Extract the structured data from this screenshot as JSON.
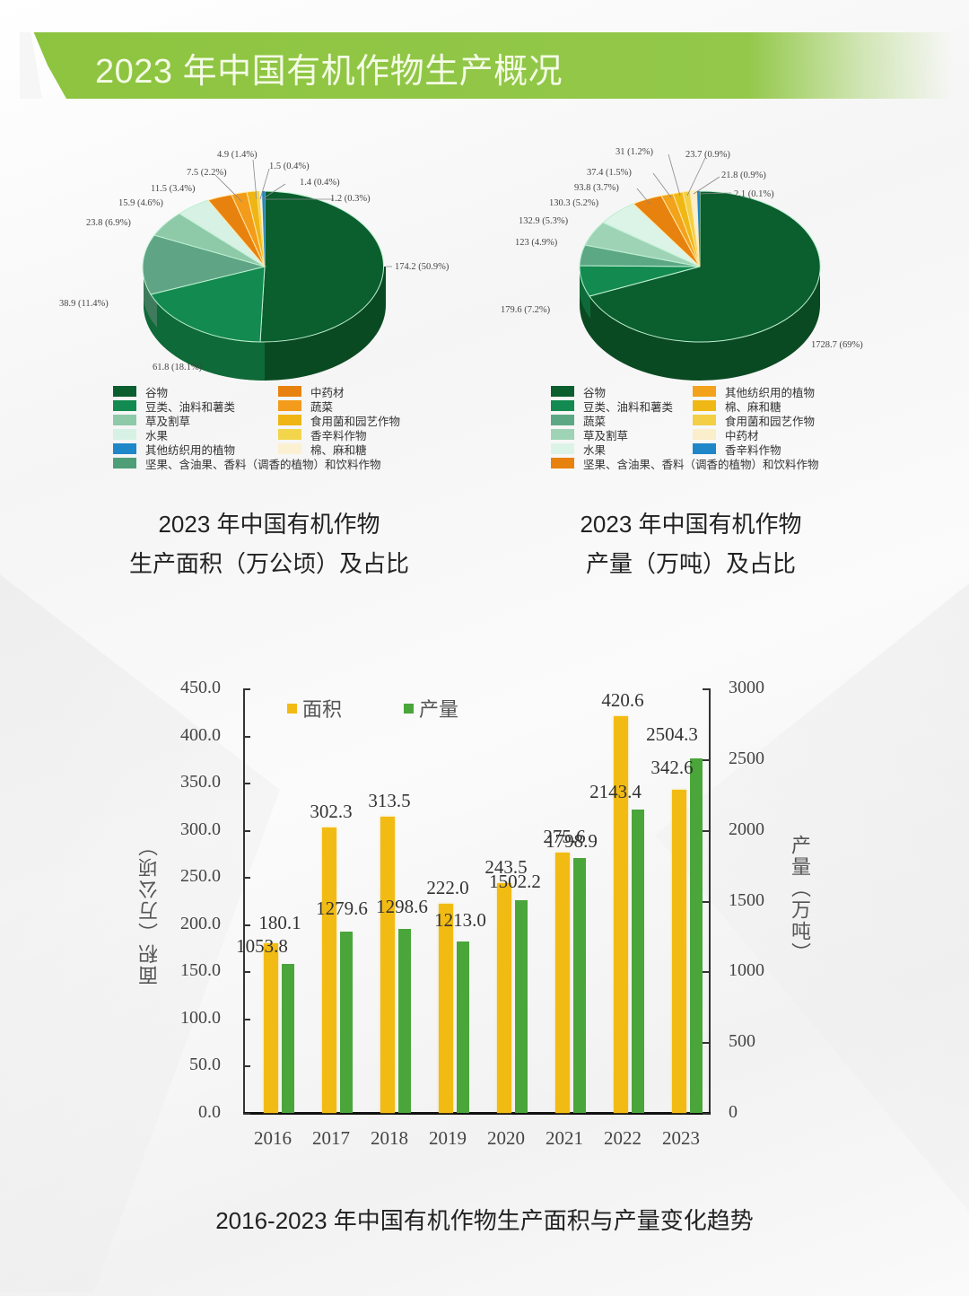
{
  "page": {
    "title": "2023 年中国有机作物生产概况"
  },
  "colors": {
    "banner": "#8dc43f",
    "area_bar": "#f2bb14",
    "production_bar": "#4aa53a"
  },
  "pie_area": {
    "caption_line1": "2023 年中国有机作物",
    "caption_line2": "生产面积（万公顷）及占比",
    "labels": [
      "174.2 (50.9%)",
      "61.8 (18.1%)",
      "38.9 (11.4%)",
      "23.8 (6.9%)",
      "15.9 (4.6%)",
      "11.5 (3.4%)",
      "7.5 (2.2%)",
      "4.9 (1.4%)",
      "1.5 (0.4%)",
      "1.4 (0.4%)",
      "1.2 (0.3%)"
    ],
    "legend": [
      {
        "label": "谷物",
        "color": "#0b5e2e"
      },
      {
        "label": "豆类、油料和薯类",
        "color": "#138a50"
      },
      {
        "label": "草及割草",
        "color": "#8ec9a8"
      },
      {
        "label": "水果",
        "color": "#d7f1e4"
      },
      {
        "label": "其他纺织用的植物",
        "color": "#1f86c8"
      },
      {
        "label": "坚果、含油果、香料（调香的植物）和饮料作物",
        "color": "#4e9e78"
      },
      {
        "label": "中药材",
        "color": "#e8820e"
      },
      {
        "label": "蔬菜",
        "color": "#f39b1a"
      },
      {
        "label": "食用菌和园艺作物",
        "color": "#efb515"
      },
      {
        "label": "香辛料作物",
        "color": "#f2d54a"
      },
      {
        "label": "棉、麻和糖",
        "color": "#fbf0d2"
      }
    ]
  },
  "pie_production": {
    "caption_line1": "2023 年中国有机作物",
    "caption_line2": "产量（万吨）及占比",
    "labels": [
      "1728.7 (69%)",
      "179.6 (7.2%)",
      "123 (4.9%)",
      "132.9 (5.3%)",
      "130.3 (5.2%)",
      "93.8 (3.7%)",
      "37.4 (1.5%)",
      "31 (1.2%)",
      "23.7 (0.9%)",
      "21.8 (0.9%)",
      "2.1 (0.1%)"
    ],
    "legend": [
      {
        "label": "谷物",
        "color": "#0b5e2e"
      },
      {
        "label": "豆类、油料和薯类",
        "color": "#138a50"
      },
      {
        "label": "蔬菜",
        "color": "#5da884"
      },
      {
        "label": "草及割草",
        "color": "#9ed3b6"
      },
      {
        "label": "水果",
        "color": "#dcf3e7"
      },
      {
        "label": "坚果、含油果、香料（调香的植物）和饮料作物",
        "color": "#e8820e"
      },
      {
        "label": "其他纺织用的植物",
        "color": "#f3a21c"
      },
      {
        "label": "棉、麻和糖",
        "color": "#f0b815"
      },
      {
        "label": "食用菌和园艺作物",
        "color": "#f2cf45"
      },
      {
        "label": "中药材",
        "color": "#fbeecb"
      },
      {
        "label": "香辛料作物",
        "color": "#1f86c8"
      }
    ]
  },
  "bar_chart": {
    "caption": "2016-2023 年中国有机作物生产面积与产量变化趋势",
    "legend_area": "面积",
    "legend_production": "产量",
    "left_axis_title": "面积（万公顷）",
    "right_axis_title": "产量（万吨）",
    "left_ticks": [
      "450.0",
      "400.0",
      "350.0",
      "300.0",
      "250.0",
      "200.0",
      "150.0",
      "100.0",
      "50.0",
      "0.0"
    ],
    "right_ticks": [
      "3000",
      "2500",
      "2000",
      "1500",
      "1000",
      "500",
      "0"
    ],
    "years": [
      "2016",
      "2017",
      "2018",
      "2019",
      "2020",
      "2021",
      "2022",
      "2023"
    ],
    "area_labels": [
      "180.1",
      "302.3",
      "313.5",
      "222.0",
      "243.5",
      "275.6",
      "420.6",
      "342.6"
    ],
    "production_labels": [
      "1053.8",
      "1279.6",
      "1298.6",
      "1213.0",
      "1502.2",
      "1798.9",
      "2143.4",
      "2504.3"
    ]
  },
  "chart_data": [
    {
      "type": "pie",
      "title": "2023 年中国有机作物生产面积（万公顷）及占比",
      "categories": [
        "谷物",
        "豆类、油料和薯类",
        "草及割草",
        "水果",
        "坚果、含油果、香料（调香的植物）和饮料作物",
        "中药材",
        "蔬菜",
        "食用菌和园艺作物",
        "香辛料作物",
        "棉、麻和糖",
        "其他纺织用的植物"
      ],
      "values": [
        174.2,
        61.8,
        38.9,
        23.8,
        15.9,
        11.5,
        7.5,
        4.9,
        1.5,
        1.4,
        1.2
      ],
      "percentages": [
        50.9,
        18.1,
        11.4,
        6.9,
        4.6,
        3.4,
        2.2,
        1.4,
        0.4,
        0.4,
        0.3
      ],
      "legend_position": "bottom",
      "style": "3d"
    },
    {
      "type": "pie",
      "title": "2023 年中国有机作物产量（万吨）及占比",
      "categories": [
        "谷物",
        "豆类、油料和薯类",
        "蔬菜",
        "草及割草",
        "水果",
        "坚果、含油果、香料（调香的植物）和饮料作物",
        "其他纺织用的植物",
        "棉、麻和糖",
        "食用菌和园艺作物",
        "中药材",
        "香辛料作物"
      ],
      "values": [
        1728.7,
        179.6,
        123,
        132.9,
        130.3,
        93.8,
        37.4,
        31,
        23.7,
        21.8,
        2.1
      ],
      "percentages": [
        69,
        7.2,
        4.9,
        5.3,
        5.2,
        3.7,
        1.5,
        1.2,
        0.9,
        0.9,
        0.1
      ],
      "legend_position": "bottom",
      "style": "3d"
    },
    {
      "type": "bar",
      "title": "2016-2023 年中国有机作物生产面积与产量变化趋势",
      "categories": [
        "2016",
        "2017",
        "2018",
        "2019",
        "2020",
        "2021",
        "2022",
        "2023"
      ],
      "series": [
        {
          "name": "面积",
          "axis": "left",
          "unit": "万公顷",
          "values": [
            180.1,
            302.3,
            313.5,
            222.0,
            243.5,
            275.6,
            420.6,
            342.6
          ]
        },
        {
          "name": "产量",
          "axis": "right",
          "unit": "万吨",
          "values": [
            1053.8,
            1279.6,
            1298.6,
            1213.0,
            1502.2,
            1798.9,
            2143.4,
            2504.3
          ]
        }
      ],
      "xlabel": "",
      "ylabel": "面积（万公顷）",
      "ylabel_right": "产量（万吨）",
      "ylim": [
        0,
        450
      ],
      "ylim_right": [
        0,
        3000
      ],
      "grid": false,
      "legend_position": "top-left"
    }
  ]
}
